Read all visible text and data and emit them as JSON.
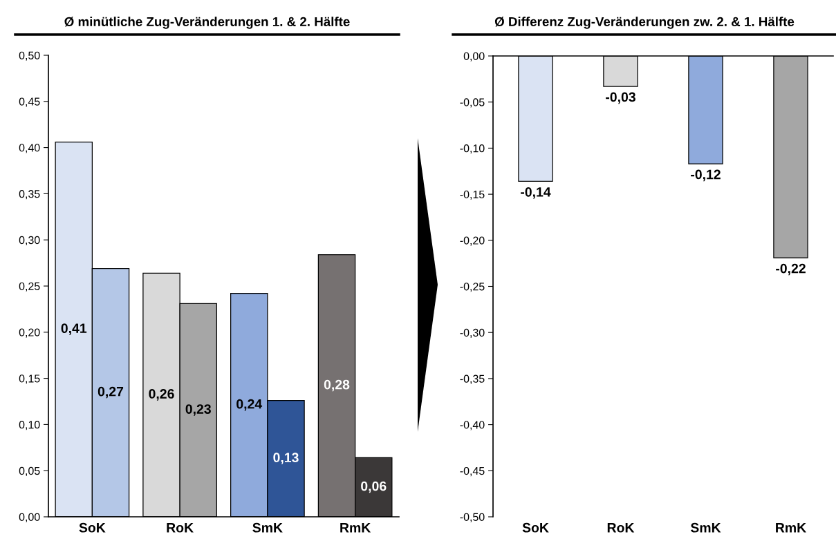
{
  "chart_data": [
    {
      "type": "bar",
      "title": "Ø minütliche Zug-Veränderungen 1. & 2. Hälfte",
      "categories": [
        "SoK",
        "RoK",
        "SmK",
        "RmK"
      ],
      "series": [
        {
          "colors": [
            "#dae3f3",
            "#d9d9d9",
            "#8faadc",
            "#767171"
          ],
          "values": [
            0.406,
            0.264,
            0.242,
            0.284
          ],
          "value_labels": [
            "0,41",
            "0,26",
            "0,24",
            "0,28"
          ]
        },
        {
          "colors": [
            "#b4c7e7",
            "#a6a6a6",
            "#2f5597",
            "#3b3838"
          ],
          "values": [
            0.269,
            0.231,
            0.126,
            0.064
          ],
          "value_labels": [
            "0,27",
            "0,23",
            "0,13",
            "0,06"
          ]
        }
      ],
      "ylim": [
        0,
        0.5
      ],
      "yticks": [
        {
          "value": 0,
          "label": "0,00"
        },
        {
          "value": 0.05,
          "label": "0,05"
        },
        {
          "value": 0.1,
          "label": "0,10"
        },
        {
          "value": 0.15,
          "label": "0,15"
        },
        {
          "value": 0.2,
          "label": "0,20"
        },
        {
          "value": 0.25,
          "label": "0,25"
        },
        {
          "value": 0.3,
          "label": "0,30"
        },
        {
          "value": 0.35,
          "label": "0,35"
        },
        {
          "value": 0.4,
          "label": "0,40"
        },
        {
          "value": 0.45,
          "label": "0,45"
        },
        {
          "value": 0.5,
          "label": "0,50"
        }
      ],
      "grid": false,
      "legend": false
    },
    {
      "type": "bar",
      "title": "Ø Differenz Zug-Veränderungen zw. 2. & 1. Hälfte",
      "categories": [
        "SoK",
        "RoK",
        "SmK",
        "RmK"
      ],
      "colors": [
        "#dae3f3",
        "#d9d9d9",
        "#8faadc",
        "#a6a6a6"
      ],
      "values": [
        -0.136,
        -0.033,
        -0.117,
        -0.219
      ],
      "value_labels": [
        "-0,14",
        "-0,03",
        "-0,12",
        "-0,22"
      ],
      "ylim": [
        -0.5,
        0
      ],
      "yticks": [
        {
          "value": -0.5,
          "label": "-0,50"
        },
        {
          "value": -0.45,
          "label": "-0,45"
        },
        {
          "value": -0.4,
          "label": "-0,40"
        },
        {
          "value": -0.35,
          "label": "-0,35"
        },
        {
          "value": -0.3,
          "label": "-0,30"
        },
        {
          "value": -0.25,
          "label": "-0,25"
        },
        {
          "value": -0.2,
          "label": "-0,20"
        },
        {
          "value": -0.15,
          "label": "-0,15"
        },
        {
          "value": -0.1,
          "label": "-0,10"
        },
        {
          "value": -0.05,
          "label": "-0,05"
        },
        {
          "value": 0,
          "label": "0,00"
        }
      ],
      "grid": false,
      "legend": false
    }
  ]
}
